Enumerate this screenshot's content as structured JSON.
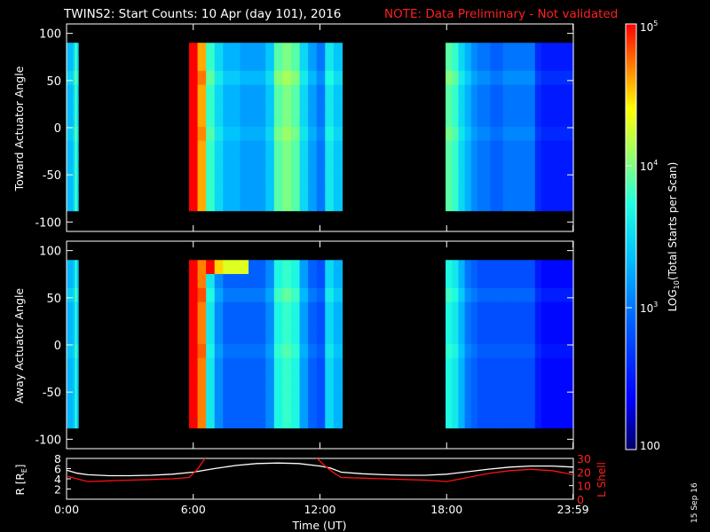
{
  "chart_data": [
    {
      "type": "heatmap",
      "id": "toward",
      "title": "TWINS2: Start Counts: 10 Apr (day 101), 2016",
      "note": "NOTE: Data Preliminary - Not validated",
      "ylabel": "Toward Actuator Angle",
      "xlim": [
        0,
        24
      ],
      "ylim": [
        -110,
        110
      ],
      "yticks": [
        100,
        50,
        0,
        -50,
        -100
      ],
      "ytick_labels": [
        "100",
        "50",
        "0",
        "-50",
        "-100"
      ],
      "angle_range": [
        -88,
        90
      ],
      "data_blocks": [
        {
          "start_hr": 0.0,
          "end_hr": 0.55,
          "profile": [
            3.3,
            3.35,
            3.3,
            3.4,
            3.35,
            3.3,
            3.4,
            3.5,
            3.6,
            3.9,
            3.7,
            3.5
          ]
        },
        {
          "start_hr": 5.8,
          "end_hr": 13.05,
          "profile": [
            5.0,
            4.6,
            3.8,
            3.5,
            3.3,
            3.3,
            3.2,
            3.2,
            3.2,
            3.4,
            3.9,
            4.0,
            3.9,
            3.5,
            3.2,
            3.0,
            3.6,
            3.4
          ]
        },
        {
          "start_hr": 17.95,
          "end_hr": 24.0,
          "profile": [
            3.9,
            3.8,
            3.5,
            3.3,
            3.1,
            3.0,
            3.0,
            2.9,
            2.9,
            3.0,
            3.0,
            3.0,
            3.0,
            3.0,
            2.6,
            2.5,
            2.5,
            2.5,
            2.5,
            2.5
          ]
        }
      ]
    },
    {
      "type": "heatmap",
      "id": "away",
      "ylabel": "Away Actuator Angle",
      "xlim": [
        0,
        24
      ],
      "ylim": [
        -110,
        110
      ],
      "yticks": [
        100,
        50,
        0,
        -50,
        -100
      ],
      "ytick_labels": [
        "100",
        "50",
        "0",
        "-50",
        "-100"
      ],
      "angle_range": [
        -88,
        90
      ],
      "data_blocks": [
        {
          "start_hr": 0.0,
          "end_hr": 0.55,
          "profile": [
            3.2,
            3.3,
            3.3,
            3.35,
            3.3,
            3.3,
            3.35,
            3.4,
            3.5,
            3.8,
            3.6,
            3.4
          ]
        },
        {
          "start_hr": 5.8,
          "end_hr": 13.05,
          "profile": [
            5.0,
            4.7,
            3.6,
            3.1,
            2.9,
            2.9,
            2.9,
            2.9,
            2.9,
            3.1,
            3.7,
            3.8,
            3.7,
            3.2,
            2.9,
            2.8,
            3.5,
            3.3
          ]
        },
        {
          "start_hr": 17.95,
          "end_hr": 24.0,
          "profile": [
            3.7,
            3.6,
            3.3,
            3.0,
            2.9,
            2.8,
            2.8,
            2.8,
            2.8,
            2.8,
            2.8,
            2.8,
            2.8,
            2.8,
            2.5,
            2.4,
            2.4,
            2.4,
            2.4,
            2.4
          ]
        }
      ]
    },
    {
      "type": "line",
      "id": "orbit",
      "ylabel_left": "R [RE]",
      "ylabel_right": "L Shell",
      "xlabel": "Time (UT)",
      "xticks": [
        0,
        6,
        12,
        18,
        23.983
      ],
      "xtick_labels": [
        "0:00",
        "6:00",
        "12:00",
        "18:00",
        "23:59"
      ],
      "ylim_left": [
        0,
        8
      ],
      "yticks_left": [
        "2",
        "4",
        "6",
        "8"
      ],
      "ylim_right": [
        0,
        30
      ],
      "yticks_right": [
        "0",
        "10",
        "20",
        "30"
      ],
      "series": [
        {
          "name": "R",
          "color": "#ffffff",
          "x": [
            0,
            0.5,
            1,
            2,
            3,
            4,
            5,
            6,
            7,
            8,
            9,
            10,
            11,
            12,
            12.5,
            13,
            14,
            15,
            16,
            17,
            18,
            19,
            20,
            21,
            22,
            23,
            24
          ],
          "y": [
            5.7,
            5.1,
            4.8,
            4.6,
            4.6,
            4.7,
            4.9,
            5.3,
            6.0,
            6.6,
            7.0,
            7.1,
            7.0,
            6.5,
            6.1,
            5.3,
            5.0,
            4.8,
            4.7,
            4.7,
            4.9,
            5.4,
            5.9,
            6.3,
            6.5,
            6.5,
            6.3
          ]
        },
        {
          "name": "L Shell",
          "color": "#ff1010",
          "segments": [
            {
              "x": [
                0,
                0.5,
                1,
                2,
                3,
                4,
                5,
                5.8,
                6.2,
                6.6
              ],
              "y": [
                17,
                15,
                13,
                13.5,
                14,
                14.5,
                15,
                16,
                22,
                31
              ]
            },
            {
              "x": [
                11.8,
                12.2,
                12.6,
                13,
                14,
                15,
                16,
                17,
                18,
                19,
                20,
                21,
                22,
                23,
                24
              ],
              "y": [
                31,
                25,
                20,
                16,
                15.5,
                15,
                14.5,
                14,
                13,
                16,
                19,
                21,
                22,
                21,
                18
              ]
            }
          ]
        }
      ]
    }
  ],
  "colorbar": {
    "label": "LOG10(Total Starts per Scan)",
    "label_main": "LOG",
    "label_sub": "10",
    "label_rest": "(Total Starts per Scan)",
    "range_log": [
      2,
      5
    ],
    "ticks": [
      {
        "log": 2,
        "base": "100",
        "exp": ""
      },
      {
        "log": 3,
        "base": "10",
        "exp": "3"
      },
      {
        "log": 4,
        "base": "10",
        "exp": "4"
      },
      {
        "log": 5,
        "base": "10",
        "exp": "5"
      }
    ]
  },
  "orbit_labels": {
    "r_label": "R [R",
    "r_sub": "E",
    "r_close": "]",
    "l_label": "L Shell"
  },
  "date_stamp": "15 Sep 16"
}
